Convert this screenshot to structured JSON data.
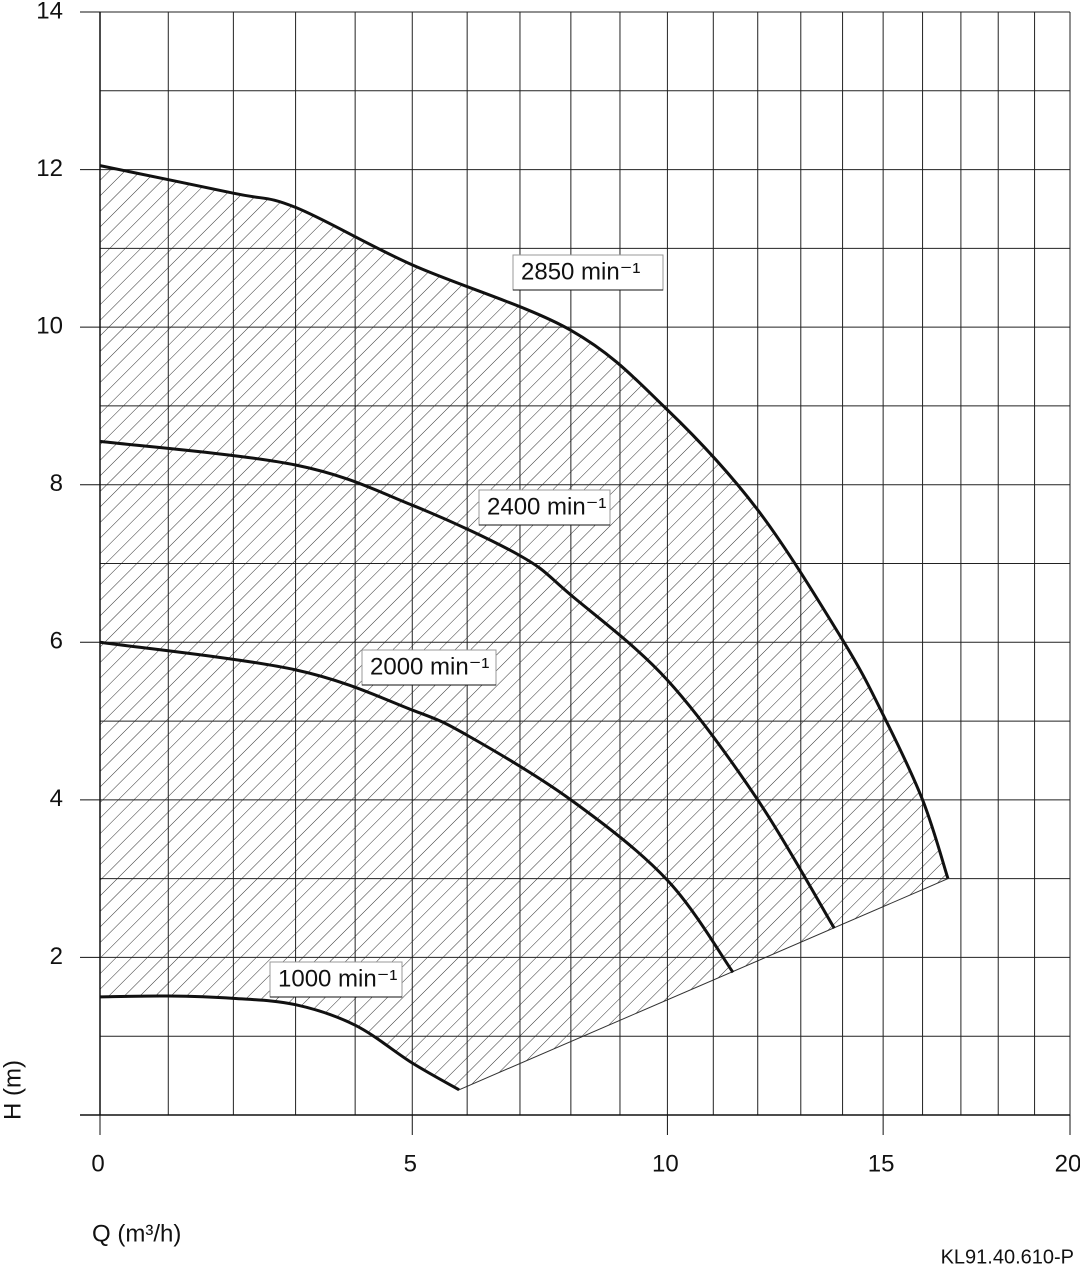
{
  "chart_data": {
    "type": "line",
    "x_label": "Q (m³/h)",
    "y_label": "H (m)",
    "code": "KL91.40.610-P",
    "xlim": [
      0,
      20
    ],
    "xticks": [
      0,
      5,
      10,
      15,
      20
    ],
    "xgrid": [
      0,
      1,
      2,
      3,
      4,
      5,
      6,
      7,
      8,
      9,
      10,
      11,
      12,
      13,
      14,
      15,
      16,
      17,
      18,
      19,
      20
    ],
    "ylim": [
      0,
      14
    ],
    "yticks": [
      2,
      4,
      6,
      8,
      10,
      12,
      14
    ],
    "ygrid": [
      0,
      1,
      2,
      3,
      4,
      5,
      6,
      7,
      8,
      9,
      10,
      11,
      12,
      13,
      14
    ],
    "grid": true,
    "hatched_range": true,
    "series": [
      {
        "name": "2850 min⁻¹",
        "color": "#111111",
        "x": [
          0,
          2,
          3,
          5,
          8,
          10,
          12,
          14,
          15,
          16,
          16.66
        ],
        "values": [
          12.05,
          11.7,
          11.52,
          10.79,
          9.96,
          8.95,
          7.68,
          6.03,
          5.08,
          4.0,
          3.0
        ]
      },
      {
        "name": "2400 min⁻¹",
        "color": "#111111",
        "x": [
          0,
          3,
          5,
          7,
          8,
          10,
          12,
          13.8
        ],
        "values": [
          8.55,
          8.25,
          7.74,
          7.1,
          6.6,
          5.52,
          4.0,
          2.37
        ]
      },
      {
        "name": "2000 min⁻¹",
        "color": "#111111",
        "x": [
          0,
          3,
          5,
          6,
          8,
          10,
          11.44
        ],
        "values": [
          6.0,
          5.65,
          5.14,
          4.82,
          4.0,
          2.98,
          1.81
        ]
      },
      {
        "name": "1000 min⁻¹",
        "color": "#111111",
        "x": [
          0,
          1,
          2,
          3,
          4,
          5,
          5.85
        ],
        "values": [
          1.5,
          1.51,
          1.48,
          1.4,
          1.14,
          0.66,
          0.32
        ]
      }
    ]
  }
}
